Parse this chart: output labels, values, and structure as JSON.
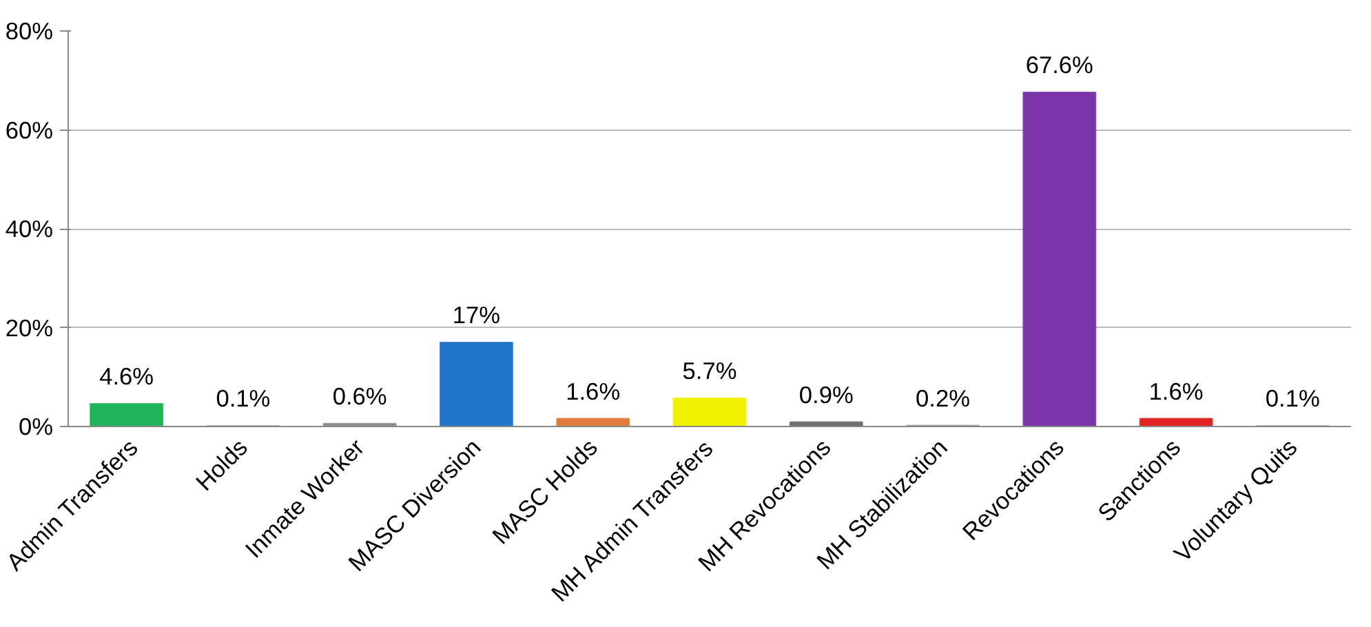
{
  "chart_data": {
    "type": "bar",
    "categories": [
      "Admin Transfers",
      "Holds",
      "Inmate Worker",
      "MASC Diversion",
      "MASC Holds",
      "MH Admin Transfers",
      "MH Revocations",
      "MH Stabilization",
      "Revocations",
      "Sanctions",
      "Voluntary Quits"
    ],
    "values": [
      4.6,
      0.1,
      0.6,
      17,
      1.6,
      5.7,
      0.9,
      0.2,
      67.6,
      1.6,
      0.1
    ],
    "colors": [
      "#1fb35a",
      "#7f7f7f",
      "#8c8c8c",
      "#1f76c6",
      "#e07b39",
      "#f2f200",
      "#6e6e6e",
      "#9a9a9a",
      "#7a36a8",
      "#e02424",
      "#7f7f7f"
    ],
    "value_labels": [
      "4.6%",
      "0.1%",
      "0.6%",
      "17%",
      "1.6%",
      "5.7%",
      "0.9%",
      "0.2%",
      "67.6%",
      "1.6%",
      "0.1%"
    ],
    "ylim": [
      0,
      80
    ],
    "yticks": [
      {
        "value": 0,
        "label": "0%"
      },
      {
        "value": 20,
        "label": "20%"
      },
      {
        "value": 40,
        "label": "40%"
      },
      {
        "value": 60,
        "label": "60%"
      },
      {
        "value": 80,
        "label": "80%"
      }
    ],
    "grid": "y"
  }
}
